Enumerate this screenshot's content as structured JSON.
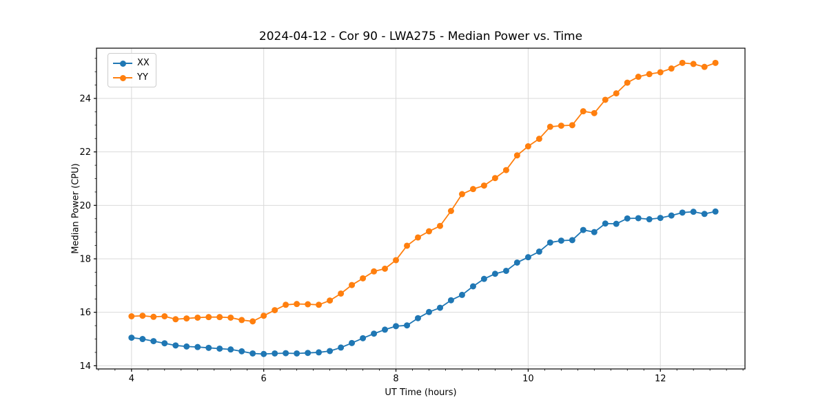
{
  "colors": {
    "background": "#ffffff",
    "grid": "#d9d9d9",
    "spine": "#000000",
    "tick": "#000000",
    "text": "#000000",
    "series_xx": "#1f77b4",
    "series_yy": "#ff7f0e"
  },
  "legend": {
    "entries": [
      {
        "label": "XX",
        "color": "#1f77b4"
      },
      {
        "label": "YY",
        "color": "#ff7f0e"
      }
    ]
  },
  "chart_data": {
    "type": "line",
    "title": "2024-04-12 - Cor 90 - LWA275 - Median Power vs. Time",
    "xlabel": "UT Time (hours)",
    "ylabel": "Median Power (CPU)",
    "xlim": [
      3.47,
      13.28
    ],
    "ylim": [
      13.88,
      25.88
    ],
    "xticks": [
      4,
      6,
      8,
      10,
      12
    ],
    "yticks": [
      14,
      16,
      18,
      20,
      22,
      24
    ],
    "x_minor_step": 0.25,
    "y_minor_step": 0.5,
    "grid": true,
    "legend_position": "upper left",
    "marker": "o",
    "x": [
      4.0,
      4.167,
      4.333,
      4.5,
      4.667,
      4.833,
      5.0,
      5.167,
      5.333,
      5.5,
      5.667,
      5.833,
      6.0,
      6.167,
      6.333,
      6.5,
      6.667,
      6.833,
      7.0,
      7.167,
      7.333,
      7.5,
      7.667,
      7.833,
      8.0,
      8.167,
      8.333,
      8.5,
      8.667,
      8.833,
      9.0,
      9.167,
      9.333,
      9.5,
      9.667,
      9.833,
      10.0,
      10.167,
      10.333,
      10.5,
      10.667,
      10.833,
      11.0,
      11.167,
      11.333,
      11.5,
      11.667,
      11.833,
      12.0,
      12.167,
      12.333,
      12.5,
      12.667,
      12.833
    ],
    "series": [
      {
        "name": "XX",
        "color": "#1f77b4",
        "values": [
          15.05,
          15.0,
          14.92,
          14.84,
          14.76,
          14.72,
          14.7,
          14.67,
          14.64,
          14.61,
          14.54,
          14.46,
          14.44,
          14.46,
          14.47,
          14.46,
          14.48,
          14.5,
          14.55,
          14.68,
          14.85,
          15.03,
          15.2,
          15.35,
          15.48,
          15.51,
          15.78,
          16.01,
          16.17,
          16.45,
          16.65,
          16.97,
          17.25,
          17.44,
          17.55,
          17.86,
          18.06,
          18.27,
          18.61,
          18.68,
          18.7,
          19.08,
          19.0,
          19.32,
          19.31,
          19.51,
          19.52,
          19.48,
          19.53,
          19.62,
          19.73,
          19.76,
          19.68,
          19.77
        ]
      },
      {
        "name": "YY",
        "color": "#ff7f0e",
        "values": [
          15.85,
          15.87,
          15.83,
          15.85,
          15.74,
          15.77,
          15.8,
          15.82,
          15.82,
          15.8,
          15.71,
          15.66,
          15.87,
          16.08,
          16.28,
          16.31,
          16.3,
          16.28,
          16.44,
          16.7,
          17.02,
          17.27,
          17.53,
          17.63,
          17.95,
          18.49,
          18.8,
          19.03,
          19.23,
          19.79,
          20.42,
          20.61,
          20.74,
          21.02,
          21.32,
          21.87,
          22.21,
          22.49,
          22.94,
          22.98,
          23.0,
          23.52,
          23.45,
          23.95,
          24.19,
          24.59,
          24.81,
          24.91,
          24.98,
          25.12,
          25.33,
          25.29,
          25.18,
          25.33
        ]
      }
    ]
  }
}
